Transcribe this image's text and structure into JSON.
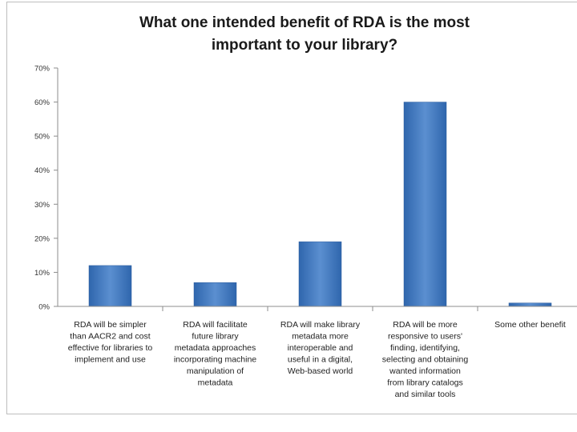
{
  "chart_data": {
    "type": "bar",
    "title": [
      "What one intended benefit of RDA is the most",
      "important to your library?"
    ],
    "xlabel": "",
    "ylabel": "",
    "ylim": [
      0,
      70
    ],
    "yticks": [
      "0%",
      "10%",
      "20%",
      "30%",
      "40%",
      "50%",
      "60%",
      "70%"
    ],
    "grid": false,
    "categories": [
      [
        "RDA will be simpler",
        "than AACR2 and cost",
        "effective for libraries to",
        "implement and use"
      ],
      [
        "RDA will facilitate",
        "future library",
        "metadata approaches",
        "incorporating machine",
        "manipulation of",
        "metadata"
      ],
      [
        "RDA will make library",
        "metadata more",
        "interoperable and",
        "useful in a digital,",
        "Web-based world"
      ],
      [
        "RDA will be more",
        "responsive to users'",
        "finding, identifying,",
        "selecting and obtaining",
        "wanted information",
        "from library catalogs",
        "and similar tools"
      ],
      [
        "Some other benefit"
      ]
    ],
    "values": [
      12,
      7,
      19,
      60,
      1
    ],
    "colors": {
      "bar_top": "#5b8fd0",
      "bar_bottom": "#2f66ad",
      "axis": "#8c8c8c"
    }
  }
}
